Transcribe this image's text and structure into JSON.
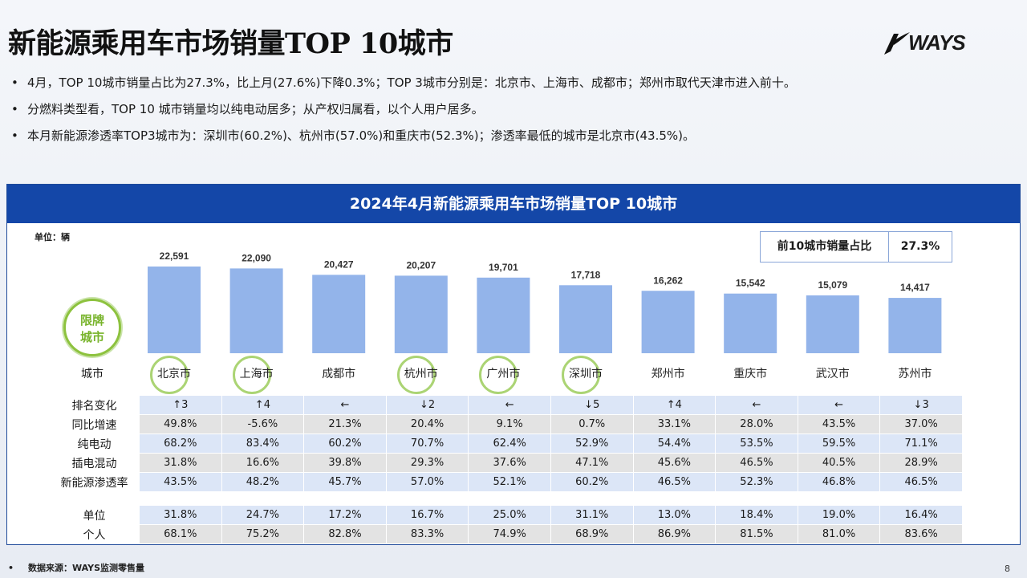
{
  "title": "新能源乘用车市场销量TOP 10城市",
  "logo": {
    "text": "WAYS",
    "icon": "ways-swoosh-icon"
  },
  "bullets": [
    "4月，TOP 10城市销量占比为27.3%，比上月(27.6%)下降0.3%；TOP 3城市分别是：北京市、上海市、成都市；郑州市取代天津市进入前十。",
    "分燃料类型看，TOP 10 城市销量均以纯电动居多；从产权归属看，以个人用户居多。",
    "本月新能源渗透率TOP3城市为：深圳市(60.2%)、杭州市(57.0%)和重庆市(52.3%)；渗透率最低的城市是北京市(43.5%)。"
  ],
  "panel": {
    "header": "2024年4月新能源乘用车市场销量TOP 10城市",
    "unit": "单位：辆",
    "share_label": "前10城市销量占比",
    "share_value": "27.3%",
    "badge_line1": "限牌",
    "badge_line2": "城市",
    "city_row_label": "城市"
  },
  "chart_data": {
    "type": "bar",
    "categories": [
      "北京市",
      "上海市",
      "成都市",
      "杭州市",
      "广州市",
      "深圳市",
      "郑州市",
      "重庆市",
      "武汉市",
      "苏州市"
    ],
    "values": [
      22591,
      22090,
      20427,
      20207,
      19701,
      17718,
      16262,
      15542,
      15079,
      14417
    ],
    "value_labels": [
      "22,591",
      "22,090",
      "20,427",
      "20,207",
      "19,701",
      "17,718",
      "16,262",
      "15,542",
      "15,079",
      "14,417"
    ],
    "restricted_cities": [
      "北京市",
      "上海市",
      "杭州市",
      "广州市",
      "深圳市"
    ],
    "bar_color": "#93b4ea",
    "ylim": [
      0,
      22591
    ]
  },
  "table_main": {
    "rows": [
      {
        "label": "排名变化",
        "style": "blue",
        "cells": [
          "↑3",
          "↑4",
          "←",
          "↓2",
          "←",
          "↓5",
          "↑4",
          "←",
          "←",
          "↓3"
        ]
      },
      {
        "label": "同比增速",
        "style": "gray",
        "cells": [
          "49.8%",
          "-5.6%",
          "21.3%",
          "20.4%",
          "9.1%",
          "0.7%",
          "33.1%",
          "28.0%",
          "43.5%",
          "37.0%"
        ]
      },
      {
        "label": "纯电动",
        "style": "blue",
        "cells": [
          "68.2%",
          "83.4%",
          "60.2%",
          "70.7%",
          "62.4%",
          "52.9%",
          "54.4%",
          "53.5%",
          "59.5%",
          "71.1%"
        ]
      },
      {
        "label": "插电混动",
        "style": "gray",
        "cells": [
          "31.8%",
          "16.6%",
          "39.8%",
          "29.3%",
          "37.6%",
          "47.1%",
          "45.6%",
          "46.5%",
          "40.5%",
          "28.9%"
        ]
      },
      {
        "label": "新能源渗透率",
        "style": "blue",
        "cells": [
          "43.5%",
          "48.2%",
          "45.7%",
          "57.0%",
          "52.1%",
          "60.2%",
          "46.5%",
          "52.3%",
          "46.8%",
          "46.5%"
        ]
      }
    ]
  },
  "table_owner": {
    "rows": [
      {
        "label": "单位",
        "style": "blue",
        "cells": [
          "31.8%",
          "24.7%",
          "17.2%",
          "16.7%",
          "25.0%",
          "31.1%",
          "13.0%",
          "18.4%",
          "19.0%",
          "16.4%"
        ]
      },
      {
        "label": "个人",
        "style": "gray",
        "cells": [
          "68.1%",
          "75.2%",
          "82.8%",
          "83.3%",
          "74.9%",
          "68.9%",
          "86.9%",
          "81.5%",
          "81.0%",
          "83.6%"
        ]
      }
    ]
  },
  "footer": {
    "source": "数据来源：WAYS监测零售量",
    "page": "8"
  }
}
